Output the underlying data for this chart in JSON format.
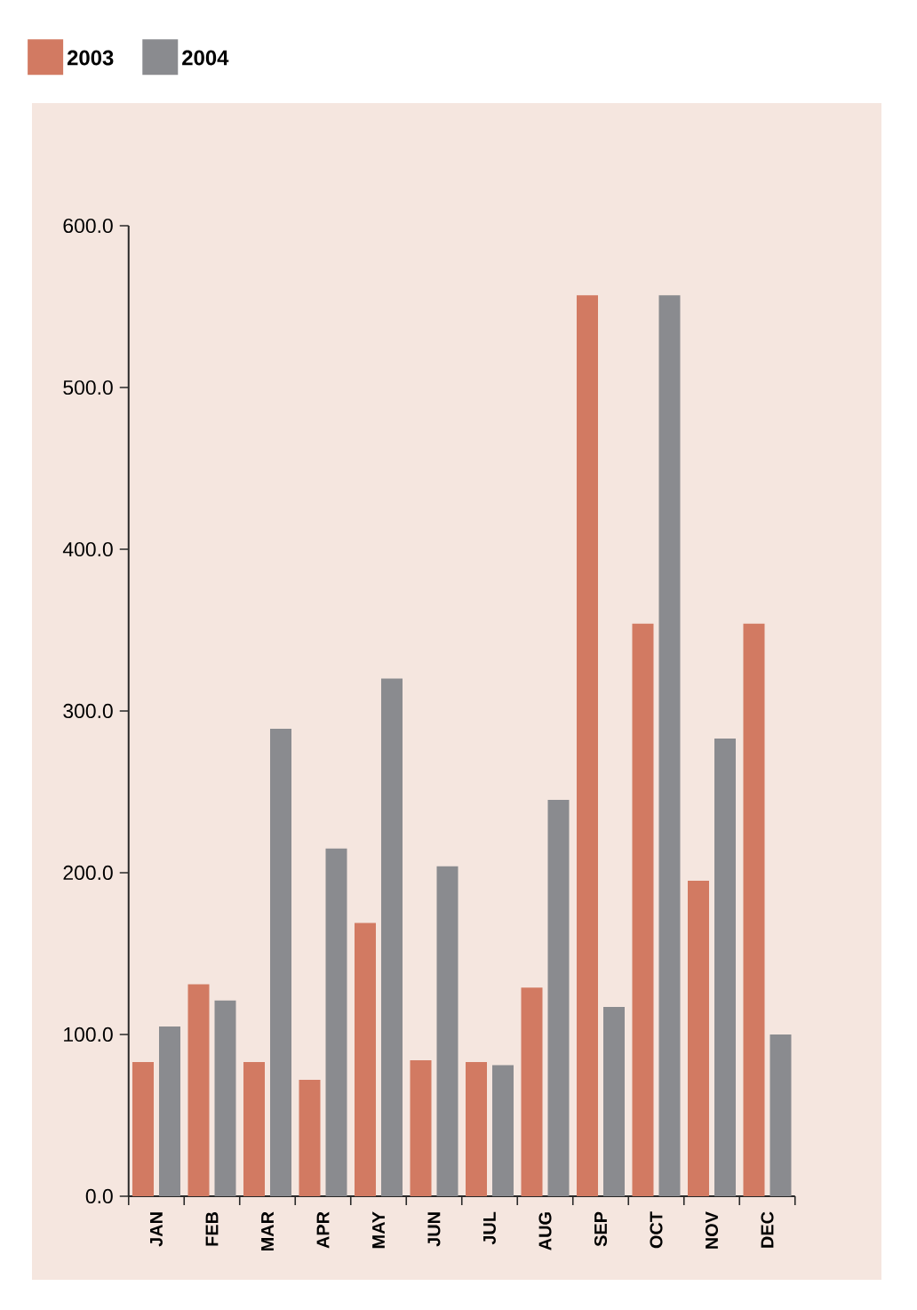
{
  "chart_data": {
    "type": "bar",
    "categories": [
      "JAN",
      "FEB",
      "MAR",
      "APR",
      "MAY",
      "JUN",
      "JUL",
      "AUG",
      "SEP",
      "OCT",
      "NOV",
      "DEC"
    ],
    "series": [
      {
        "name": "2003",
        "color": "#d27a62",
        "values": [
          83,
          131,
          83,
          72,
          169,
          84,
          83,
          129,
          557,
          354,
          195,
          354
        ]
      },
      {
        "name": "2004",
        "color": "#8a8b8f",
        "values": [
          105,
          121,
          289,
          215,
          320,
          204,
          81,
          245,
          117,
          557,
          283,
          100
        ]
      }
    ],
    "ylim": [
      0,
      600
    ],
    "yticks": [
      {
        "value": 0,
        "label": "0.0"
      },
      {
        "value": 100,
        "label": "100.0"
      },
      {
        "value": 200,
        "label": "200.0"
      },
      {
        "value": 300,
        "label": "300.0"
      },
      {
        "value": 400,
        "label": "400.0"
      },
      {
        "value": 500,
        "label": "500.0"
      },
      {
        "value": 600,
        "label": "600.0"
      }
    ],
    "legend": "top left",
    "grid": false
  }
}
